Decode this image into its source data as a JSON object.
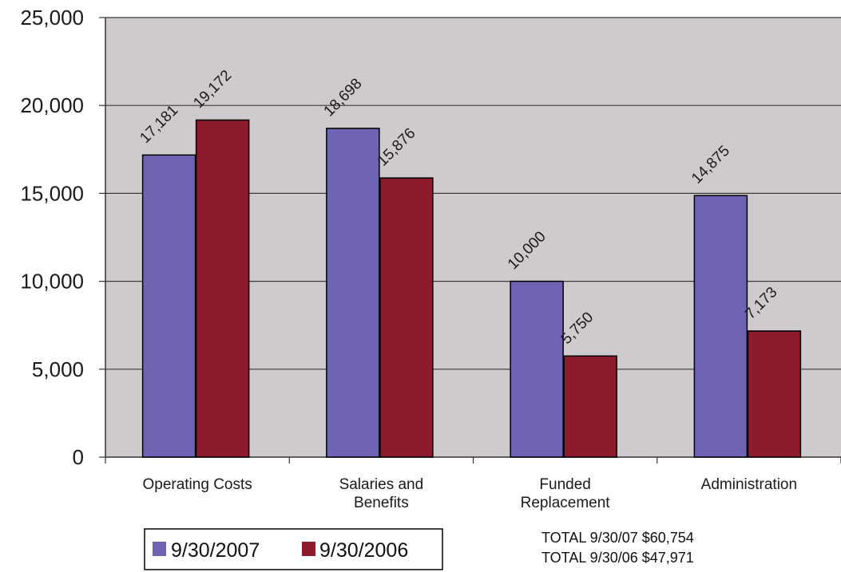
{
  "chart_data": {
    "type": "bar",
    "categories": [
      [
        "Operating Costs"
      ],
      [
        "Salaries and",
        "Benefits"
      ],
      [
        "Funded",
        "Replacement"
      ],
      [
        "Administration"
      ]
    ],
    "series": [
      {
        "name": "9/30/2007",
        "values": [
          17181,
          18698,
          10000,
          14875
        ],
        "labels": [
          "17,181",
          "18,698",
          "10,000",
          "14,875"
        ],
        "color": "#6f63b4"
      },
      {
        "name": "9/30/2006",
        "values": [
          19172,
          15876,
          5750,
          7173
        ],
        "labels": [
          "19,172",
          "15,876",
          "5,750",
          "7,173"
        ],
        "color": "#8e1a2d"
      }
    ],
    "ylim": [
      0,
      25000
    ],
    "yticks": [
      0,
      5000,
      10000,
      15000,
      20000,
      25000
    ],
    "ytick_labels": [
      "0",
      "5,000",
      "10,000",
      "15,000",
      "20,000",
      "25,000"
    ],
    "grid": true,
    "legend_position": "bottom-left",
    "plot_background": "#cfcacd",
    "totals": [
      "TOTAL 9/30/07 $60,754",
      "TOTAL 9/30/06 $47,971"
    ]
  }
}
